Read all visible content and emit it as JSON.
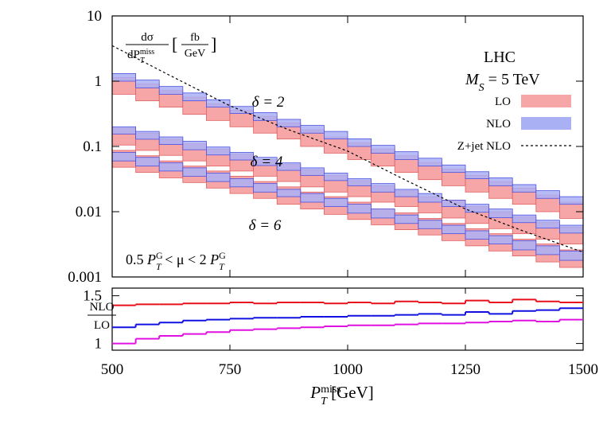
{
  "chart_data": {
    "type": "band",
    "log_y": true,
    "xlim": [
      500,
      1500
    ],
    "xticks": [
      500,
      750,
      1000,
      1250,
      1500
    ],
    "ylim": [
      0.001,
      10
    ],
    "yticks": [
      0.001,
      0.01,
      0.1,
      1,
      10
    ],
    "xlabel": [
      "P",
      "miss",
      "T",
      " [GeV]"
    ],
    "ylabel": {
      "num": "dσ",
      "den": [
        "dP",
        "miss",
        "T"
      ],
      "open": "[",
      "unit_num": "fb",
      "unit_den": "GeV",
      "close": "]"
    },
    "annotations": [
      [
        "LHC"
      ],
      [
        "M",
        "S",
        " = 5 TeV"
      ],
      [
        "0.5 ",
        "P",
        "G",
        "T",
        " < μ < 2 ",
        "P",
        "G",
        "T"
      ]
    ],
    "legend": [
      {
        "name": "LO",
        "color": "#f6a6a6",
        "edge_color": "#e06060"
      },
      {
        "name": "NLO",
        "color": "#aab0f4",
        "edge_color": "#4a50e0"
      },
      {
        "name": "Z+jet NLO",
        "color": "#000000"
      }
    ],
    "bins": [
      500,
      550,
      600,
      650,
      700,
      750,
      800,
      850,
      900,
      950,
      1000,
      1050,
      1100,
      1150,
      1200,
      1250,
      1300,
      1350,
      1400,
      1450,
      1500
    ],
    "bands": [
      {
        "label": "δ = 2",
        "color": "#e8101a",
        "lo_low": [
          0.63,
          0.5,
          0.4,
          0.31,
          0.25,
          0.2,
          0.16,
          0.13,
          0.1,
          0.079,
          0.063,
          0.05,
          0.04,
          0.031,
          0.025,
          0.02,
          0.016,
          0.013,
          0.01,
          0.0079
        ],
        "lo_high": [
          1.14,
          0.91,
          0.72,
          0.57,
          0.45,
          0.36,
          0.29,
          0.23,
          0.18,
          0.14,
          0.114,
          0.091,
          0.072,
          0.057,
          0.045,
          0.036,
          0.029,
          0.023,
          0.018,
          0.014
        ],
        "nlo_low": [
          1.0,
          0.79,
          0.63,
          0.5,
          0.4,
          0.32,
          0.25,
          0.2,
          0.16,
          0.13,
          0.1,
          0.079,
          0.063,
          0.05,
          0.04,
          0.032,
          0.025,
          0.02,
          0.016,
          0.013
        ],
        "nlo_high": [
          1.31,
          1.04,
          0.83,
          0.66,
          0.52,
          0.41,
          0.33,
          0.26,
          0.21,
          0.17,
          0.131,
          0.104,
          0.083,
          0.066,
          0.052,
          0.041,
          0.033,
          0.026,
          0.021,
          0.017
        ]
      },
      {
        "label": "δ = 4",
        "color": "#1010e0",
        "lo_low": [
          0.105,
          0.087,
          0.073,
          0.06,
          0.05,
          0.042,
          0.035,
          0.029,
          0.024,
          0.02,
          0.017,
          0.014,
          0.012,
          0.0096,
          0.008,
          0.0066,
          0.0055,
          0.0046,
          0.0038,
          0.0032
        ],
        "lo_high": [
          0.19,
          0.16,
          0.13,
          0.11,
          0.091,
          0.076,
          0.063,
          0.053,
          0.044,
          0.036,
          0.03,
          0.025,
          0.021,
          0.017,
          0.015,
          0.012,
          0.01,
          0.0083,
          0.0069,
          0.0058
        ],
        "nlo_low": [
          0.155,
          0.129,
          0.107,
          0.089,
          0.074,
          0.062,
          0.051,
          0.043,
          0.036,
          0.03,
          0.025,
          0.02,
          0.017,
          0.014,
          0.012,
          0.0098,
          0.0081,
          0.0068,
          0.0056,
          0.0047
        ],
        "nlo_high": [
          0.2,
          0.17,
          0.14,
          0.12,
          0.098,
          0.081,
          0.068,
          0.056,
          0.047,
          0.039,
          0.032,
          0.027,
          0.022,
          0.019,
          0.015,
          0.013,
          0.011,
          0.0089,
          0.0074,
          0.0062
        ]
      },
      {
        "label": "δ = 6",
        "color": "#e010e0",
        "lo_low": [
          0.048,
          0.04,
          0.033,
          0.028,
          0.023,
          0.019,
          0.016,
          0.013,
          0.011,
          0.0091,
          0.0076,
          0.0063,
          0.0053,
          0.0044,
          0.0036,
          0.003,
          0.0025,
          0.0021,
          0.0017,
          0.0014
        ],
        "lo_high": [
          0.087,
          0.072,
          0.06,
          0.05,
          0.042,
          0.035,
          0.029,
          0.024,
          0.02,
          0.017,
          0.014,
          0.011,
          0.0096,
          0.0079,
          0.0066,
          0.0055,
          0.0046,
          0.0038,
          0.0032,
          0.0026
        ],
        "nlo_low": [
          0.06,
          0.05,
          0.042,
          0.035,
          0.029,
          0.024,
          0.02,
          0.017,
          0.014,
          0.012,
          0.0095,
          0.008,
          0.0066,
          0.0055,
          0.0046,
          0.0038,
          0.0032,
          0.0026,
          0.0022,
          0.0018
        ],
        "nlo_high": [
          0.081,
          0.068,
          0.056,
          0.047,
          0.039,
          0.032,
          0.027,
          0.022,
          0.019,
          0.016,
          0.013,
          0.011,
          0.0089,
          0.0074,
          0.0062,
          0.0051,
          0.0043,
          0.0036,
          0.003,
          0.0025
        ]
      }
    ],
    "zjet": {
      "x": [
        500,
        625,
        750,
        875,
        1000,
        1125,
        1250,
        1375,
        1500
      ],
      "values": [
        3.5,
        1.2,
        0.42,
        0.18,
        0.085,
        0.03,
        0.011,
        0.005,
        0.0024
      ]
    },
    "ratio": {
      "ylabel_num": "NLO",
      "ylabel_den": "LO",
      "ylim": [
        0.93,
        1.58
      ],
      "yticks": [
        1,
        1.5
      ],
      "series": [
        {
          "color": "#e8101a",
          "values": [
            1.4,
            1.41,
            1.41,
            1.42,
            1.42,
            1.43,
            1.42,
            1.43,
            1.43,
            1.42,
            1.43,
            1.42,
            1.44,
            1.43,
            1.42,
            1.45,
            1.43,
            1.46,
            1.44,
            1.43
          ]
        },
        {
          "color": "#1010e0",
          "values": [
            1.17,
            1.2,
            1.22,
            1.24,
            1.25,
            1.26,
            1.27,
            1.27,
            1.28,
            1.28,
            1.29,
            1.29,
            1.3,
            1.31,
            1.3,
            1.33,
            1.31,
            1.34,
            1.35,
            1.37
          ]
        },
        {
          "color": "#e010e0",
          "values": [
            1.0,
            1.05,
            1.08,
            1.1,
            1.12,
            1.14,
            1.15,
            1.16,
            1.17,
            1.18,
            1.19,
            1.19,
            1.2,
            1.21,
            1.21,
            1.22,
            1.23,
            1.24,
            1.23,
            1.25
          ]
        }
      ]
    }
  }
}
